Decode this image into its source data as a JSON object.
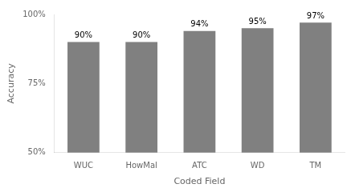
{
  "chart_data": {
    "type": "bar",
    "categories": [
      "WUC",
      "HowMal",
      "ATC",
      "WD",
      "TM"
    ],
    "values": [
      90,
      90,
      94,
      95,
      97
    ],
    "value_labels": [
      "90%",
      "90%",
      "94%",
      "95%",
      "97%"
    ],
    "data_labels": true,
    "color": "#808080",
    "xlabel": "Coded Field",
    "ylabel": "Accuracy",
    "ylim": [
      50,
      100
    ],
    "yticks": [
      {
        "value": 50,
        "label": "50%"
      },
      {
        "value": 75,
        "label": "75%"
      },
      {
        "value": 100,
        "label": "100%"
      }
    ],
    "grid": false
  }
}
